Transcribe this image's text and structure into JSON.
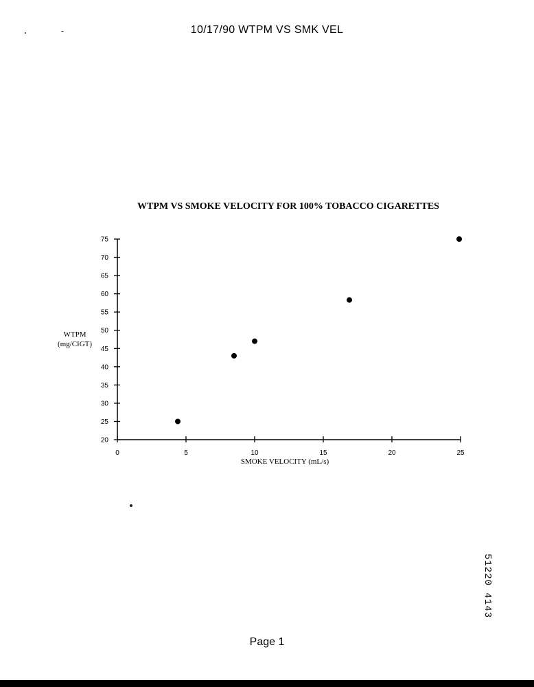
{
  "header": {
    "title": "10/17/90 WTPM VS SMK VEL"
  },
  "footer": {
    "page": "Page 1",
    "doc_id": "51220 4143"
  },
  "chart_data": {
    "type": "scatter",
    "title": "WTPM VS SMOKE VELOCITY FOR 100% TOBACCO CIGARETTES",
    "xlabel": "SMOKE VELOCITY (mL/s)",
    "ylabel": [
      "WTPM",
      "(mg/CIGT)"
    ],
    "xlim": [
      0,
      25
    ],
    "ylim": [
      20,
      75
    ],
    "xticks": [
      0,
      5,
      10,
      15,
      20,
      25
    ],
    "yticks": [
      20,
      25,
      30,
      35,
      40,
      45,
      50,
      55,
      60,
      65,
      70,
      75
    ],
    "grid": false,
    "points": [
      {
        "x": 4.4,
        "y": 25
      },
      {
        "x": 8.5,
        "y": 43
      },
      {
        "x": 10,
        "y": 47
      },
      {
        "x": 16.9,
        "y": 58.3
      },
      {
        "x": 24.9,
        "y": 75
      }
    ]
  }
}
